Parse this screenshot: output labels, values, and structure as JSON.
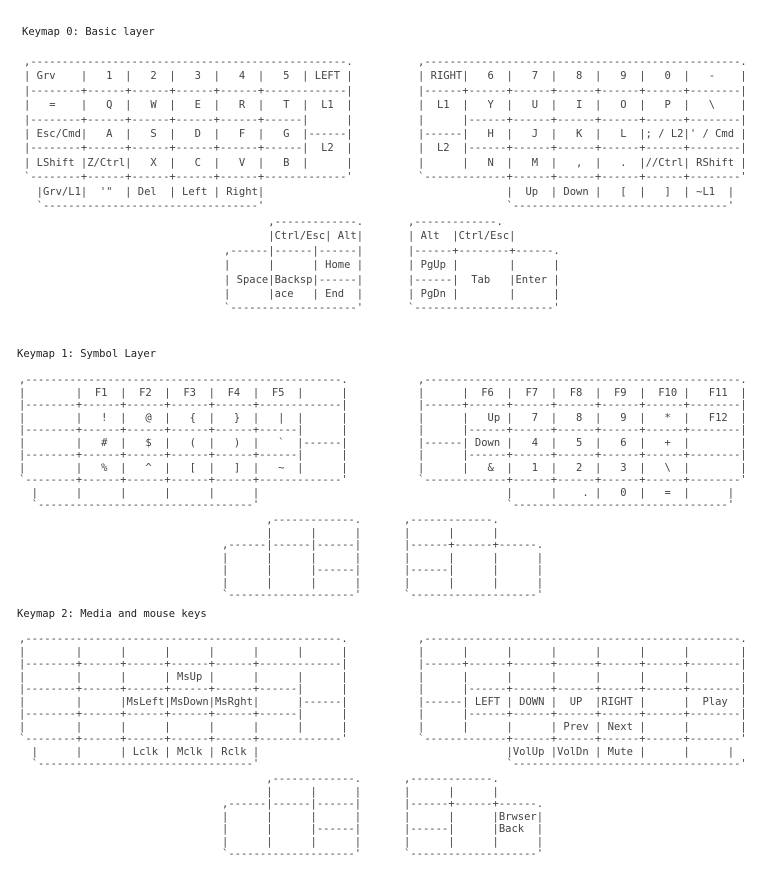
{
  "layers": [
    {
      "title": "Keymap 0: Basic layer",
      "left_hand": [
        ",--------------------------------------------------.",
        "| Grv    |   1  |   2  |   3  |   4  |   5  | LEFT |",
        "|--------+------+------+------+------+-------------|",
        "|   =    |   Q  |   W  |   E  |   R  |   T  |  L1  |",
        "|--------+------+------+------+------+------|      |",
        "| Esc/Cmd|   A  |   S  |   D  |   F  |   G  |------|",
        "|--------+------+------+------+------+------|  L2  |",
        "| LShift |Z/Ctrl|   X  |   C  |   V  |   B  |      |",
        "`--------+------+------+------+------+-------------'",
        "  |Grv/L1|  '\"  | Del  | Left | Right|",
        "  `----------------------------------'"
      ],
      "right_hand": [
        ",--------------------------------------------------.",
        "| RIGHT|   6  |   7  |   8  |   9  |   0  |   -    |",
        "|------+------+------+------+------+------+--------|",
        "|  L1  |   Y  |   U  |   I  |   O  |   P  |   \\    |",
        "|      |------+------+------+------+------+--------|",
        "|------|   H  |   J  |   K  |   L  |; / L2|' / Cmd |",
        "|  L2  |------+------+------+------+------+--------|",
        "|      |   N  |   M  |   ,  |   .  |//Ctrl| RShift |",
        "`-------------+------+------+------+------+--------'",
        "              |  Up  | Down |   [  |   ]  | ~L1  |",
        "              `----------------------------------'"
      ],
      "left_thumb": [
        "       ,-------------.",
        "       |Ctrl/Esc| Alt|",
        ",------|------|------|",
        "|      |      | Home |",
        "| Space|Backsp|------|",
        "|      |ace   | End  |",
        "`--------------------'"
      ],
      "right_thumb": [
        ",-------------.",
        "| Alt  |Ctrl/Esc|",
        "|------+--------+------.",
        "| PgUp |        |      |",
        "|------|  Tab   |Enter |",
        "| PgDn |        |      |",
        "`----------------------'"
      ]
    },
    {
      "title": "Keymap 1: Symbol Layer",
      "left_hand": [
        ",--------------------------------------------------.",
        "|        |  F1  |  F2  |  F3  |  F4  |  F5  |      |",
        "|--------+------+------+------+------+-------------|",
        "|        |   !  |   @  |   {  |   }  |   |  |      |",
        "|--------+------+------+------+------+------|      |",
        "|        |   #  |   $  |   (  |   )  |   `  |------|",
        "|--------+------+------+------+------+------|      |",
        "|        |   %  |   ^  |   [  |   ]  |   ~  |      |",
        "`--------+------+------+------+------+-------------'",
        "  |      |      |      |      |      |",
        "  `----------------------------------'"
      ],
      "right_hand": [
        ",--------------------------------------------------.",
        "|      |  F6  |  F7  |  F8  |  F9  |  F10 |   F11  |",
        "|------+------+------+------+------+------+--------|",
        "|      |   Up |   7  |   8  |   9  |   *  |   F12  |",
        "|      |------+------+------+------+------+--------|",
        "|------| Down |   4  |   5  |   6  |   +  |        |",
        "|      |------+------+------+------+------+--------|",
        "|      |   &  |   1  |   2  |   3  |   \\  |        |",
        "`-------------+------+------+------+------+--------'",
        "              |      |    . |   0  |   =  |      |",
        "              `----------------------------------'"
      ],
      "left_thumb": [
        "       ,-------------.",
        "       |      |      |",
        ",------|------|------|",
        "|      |      |      |",
        "|      |      |------|",
        "|      |      |      |",
        "`--------------------'"
      ],
      "right_thumb": [
        ",-------------.",
        "|      |      |",
        "|------+------+------.",
        "|      |      |      |",
        "|------|      |      |",
        "|      |      |      |",
        "`--------------------'"
      ]
    },
    {
      "title": "Keymap 2: Media and mouse keys",
      "left_hand": [
        ",--------------------------------------------------.",
        "|        |      |      |      |      |      |      |",
        "|--------+------+------+------+------+-------------|",
        "|        |      |      | MsUp |      |      |      |",
        "|--------+------+------+------+------+------|      |",
        "|        |      |MsLeft|MsDown|MsRght|      |------|",
        "|--------+------+------+------+------+------|      |",
        "|        |      |      |      |      |      |      |",
        "`--------+------+------+------+------+-------------'",
        "  |      |      | Lclk | Mclk | Rclk |",
        "  `----------------------------------'"
      ],
      "right_hand": [
        ",--------------------------------------------------.",
        "|      |      |      |      |      |      |        |",
        "|------+------+------+------+------+------+--------|",
        "|      |      |      |      |      |      |        |",
        "|      |------+------+------+------+------+--------|",
        "|------| LEFT | DOWN |  UP  |RIGHT |      |  Play  |",
        "|      |------+------+------+------+------+--------|",
        "|      |      |      | Prev | Next |      |        |",
        "`-------------+------+------+------+------+--------'",
        "              |VolUp |VolDn | Mute |      |      |",
        "              `------------------------------------'"
      ],
      "left_thumb": [
        "       ,-------------.",
        "       |      |      |",
        ",------|------|------|",
        "|      |      |      |",
        "|      |      |------|",
        "|      |      |      |",
        "`--------------------'"
      ],
      "right_thumb": [
        ",-------------.",
        "|      |      |",
        "|------+------+------.",
        "|      |      |Brwser|",
        "|------|      |Back  |",
        "|      |      |      |",
        "`--------------------'"
      ]
    }
  ]
}
